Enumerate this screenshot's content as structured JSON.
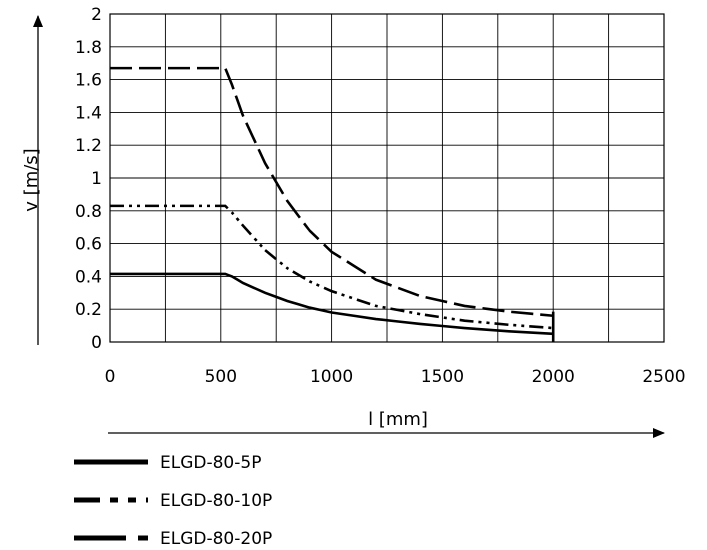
{
  "chart_data": {
    "type": "line",
    "xlabel": "l [mm]",
    "ylabel": "v [m/s]",
    "xlim": [
      0,
      2500
    ],
    "ylim": [
      0,
      2
    ],
    "x_ticks": [
      "0",
      "500",
      "1000",
      "1500",
      "2000",
      "2500"
    ],
    "y_ticks": [
      "0",
      "0.2",
      "0.4",
      "0.6",
      "0.8",
      "1",
      "1.2",
      "1.4",
      "1.6",
      "1.8",
      "2"
    ],
    "grid": true,
    "legend_position": "bottom",
    "series": [
      {
        "name": "ELGD-80-5P",
        "style": "solid",
        "x": [
          0,
          520,
          550,
          600,
          700,
          800,
          900,
          1000,
          1200,
          1400,
          1600,
          1800,
          2000
        ],
        "y": [
          0.415,
          0.415,
          0.4,
          0.36,
          0.3,
          0.25,
          0.21,
          0.18,
          0.14,
          0.11,
          0.085,
          0.065,
          0.05
        ]
      },
      {
        "name": "ELGD-80-10P",
        "style": "dash-dot-dot",
        "x": [
          0,
          520,
          550,
          600,
          700,
          800,
          900,
          1000,
          1200,
          1400,
          1600,
          1800,
          2000
        ],
        "y": [
          0.83,
          0.83,
          0.79,
          0.71,
          0.56,
          0.45,
          0.37,
          0.31,
          0.22,
          0.17,
          0.13,
          0.105,
          0.085
        ]
      },
      {
        "name": "ELGD-80-20P",
        "style": "dashed",
        "x": [
          0,
          520,
          550,
          600,
          700,
          800,
          900,
          1000,
          1200,
          1400,
          1600,
          1800,
          2000
        ],
        "y": [
          1.67,
          1.67,
          1.57,
          1.38,
          1.09,
          0.86,
          0.68,
          0.55,
          0.38,
          0.28,
          0.22,
          0.185,
          0.16
        ]
      }
    ],
    "end_marker_x": 2000
  },
  "legend": [
    {
      "label": "ELGD-80-5P",
      "style": "solid"
    },
    {
      "label": "ELGD-80-10P",
      "style": "dash-dot-dot"
    },
    {
      "label": "ELGD-80-20P",
      "style": "dash-long"
    }
  ]
}
